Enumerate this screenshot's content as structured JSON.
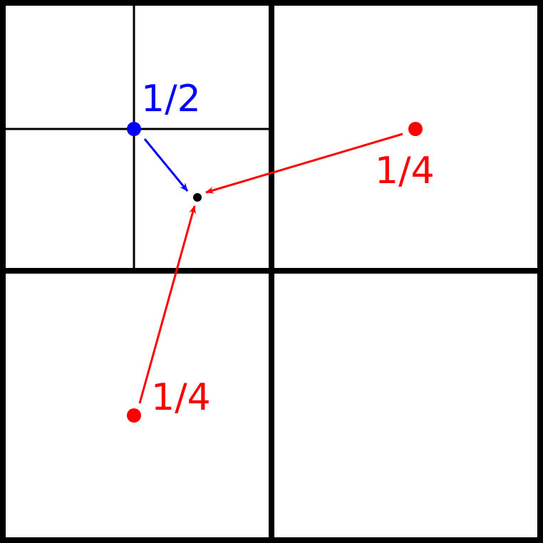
{
  "colors": {
    "grid": "#000000",
    "coarse_point": "#ff0000",
    "fine_point": "#0000ff",
    "target_point": "#000000"
  },
  "labels": {
    "fine_weight": "1/2",
    "coarse_weight_right": "1/4",
    "coarse_weight_bottom": "1/4"
  }
}
